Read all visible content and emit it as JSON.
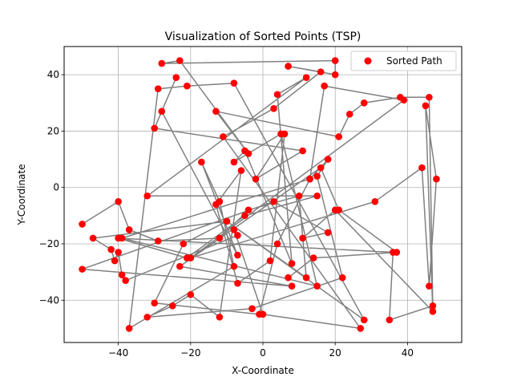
{
  "chart_data": {
    "type": "scatter",
    "title": "Visualization of Sorted Points (TSP)",
    "xlabel": "X-Coordinate",
    "ylabel": "Y-Coordinate",
    "xlim": [
      -55,
      55
    ],
    "ylim": [
      -55,
      50
    ],
    "xticks": [
      -40,
      -20,
      0,
      20,
      40
    ],
    "yticks": [
      -40,
      -20,
      0,
      20,
      40
    ],
    "grid": true,
    "legend_position": "top-right",
    "series": [
      {
        "name": "Sorted Path",
        "point_color": "#ff0000",
        "line_color": "#808080",
        "points": [
          [
            -50,
            -13
          ],
          [
            -40,
            -5
          ],
          [
            -37,
            -15
          ],
          [
            -29,
            -19
          ],
          [
            -12,
            -18
          ],
          [
            -4,
            -8
          ],
          [
            10,
            -3
          ],
          [
            12,
            -32
          ],
          [
            -10,
            -12
          ],
          [
            -22,
            -20
          ],
          [
            -30,
            -41
          ],
          [
            -1,
            -45
          ],
          [
            4,
            -20
          ],
          [
            13,
            3
          ],
          [
            18,
            10
          ],
          [
            15,
            4
          ],
          [
            22,
            -32
          ],
          [
            -3,
            -43
          ],
          [
            -32,
            -46
          ],
          [
            -25,
            -42
          ],
          [
            -20,
            -38
          ],
          [
            -12,
            -46
          ],
          [
            -6,
            6
          ],
          [
            -13,
            -6
          ],
          [
            -7,
            -34
          ],
          [
            2,
            -26
          ],
          [
            6,
            19
          ],
          [
            -2,
            3
          ],
          [
            11,
            13
          ],
          [
            -30,
            21
          ],
          [
            -24,
            39
          ],
          [
            -28,
            27
          ],
          [
            -7,
            -24
          ],
          [
            -17,
            9
          ],
          [
            -12,
            -5
          ],
          [
            -8,
            -28
          ],
          [
            -37,
            -50
          ],
          [
            -29,
            35
          ],
          [
            -21,
            36
          ],
          [
            -8,
            37
          ],
          [
            28,
            -47
          ],
          [
            -10,
            -12
          ],
          [
            -47,
            -18
          ],
          [
            -42,
            -22
          ],
          [
            -41,
            -26
          ],
          [
            -40,
            -23
          ],
          [
            -39,
            -31
          ],
          [
            -38,
            -33
          ],
          [
            -7,
            -17
          ],
          [
            -8,
            -15
          ],
          [
            0,
            -45
          ],
          [
            27,
            -50
          ],
          [
            -11,
            18
          ],
          [
            3,
            28
          ],
          [
            16,
            41
          ],
          [
            7,
            43
          ],
          [
            20,
            40
          ],
          [
            20,
            45
          ],
          [
            -28,
            44
          ],
          [
            -23,
            45
          ],
          [
            -4,
            12
          ],
          [
            -13,
            27
          ],
          [
            21,
            18
          ],
          [
            24,
            26
          ],
          [
            28,
            30
          ],
          [
            38,
            32
          ],
          [
            46,
            32
          ],
          [
            47,
            -42
          ],
          [
            35,
            -47
          ],
          [
            36,
            -23
          ],
          [
            -40,
            -18
          ],
          [
            -21,
            -25
          ],
          [
            -5,
            -10
          ],
          [
            15,
            -3
          ],
          [
            -32,
            -3
          ],
          [
            12,
            39
          ],
          [
            4,
            33
          ],
          [
            8,
            -27
          ],
          [
            -5,
            13
          ],
          [
            -8,
            9
          ],
          [
            5,
            19
          ],
          [
            15,
            -35
          ],
          [
            -39,
            -18
          ],
          [
            13,
            3
          ],
          [
            17,
            36
          ],
          [
            39,
            31
          ],
          [
            -20,
            -25
          ],
          [
            31,
            -5
          ],
          [
            44,
            7
          ],
          [
            46,
            -35
          ],
          [
            48,
            3
          ],
          [
            45,
            29
          ],
          [
            47,
            -44
          ],
          [
            20,
            -8
          ],
          [
            11,
            -18
          ],
          [
            18,
            -16
          ],
          [
            3,
            -5
          ],
          [
            -50,
            -29
          ],
          [
            8,
            -35
          ],
          [
            -23,
            -28
          ],
          [
            16,
            7
          ],
          [
            21,
            -8
          ],
          [
            37,
            -23
          ],
          [
            14,
            -25
          ],
          [
            7,
            -32
          ]
        ]
      }
    ]
  }
}
